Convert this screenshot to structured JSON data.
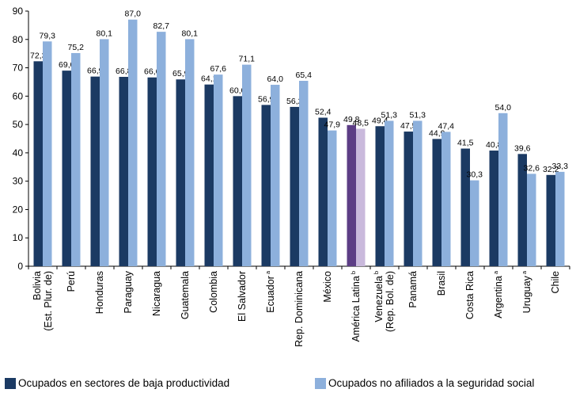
{
  "chart_data": {
    "type": "bar",
    "y_ticks": [
      "0",
      "10",
      "20",
      "30",
      "40",
      "50",
      "60",
      "70",
      "80",
      "90"
    ],
    "ylim": [
      0,
      90
    ],
    "grid": false,
    "categories": [
      {
        "lines": [
          "Bolivia",
          "(Est. Plur. de)"
        ],
        "sup": ""
      },
      {
        "lines": [
          "Perú"
        ],
        "sup": ""
      },
      {
        "lines": [
          "Honduras"
        ],
        "sup": ""
      },
      {
        "lines": [
          "Paraguay"
        ],
        "sup": ""
      },
      {
        "lines": [
          "Nicaragua"
        ],
        "sup": ""
      },
      {
        "lines": [
          "Guatemala"
        ],
        "sup": ""
      },
      {
        "lines": [
          "Colombia"
        ],
        "sup": ""
      },
      {
        "lines": [
          "El Salvador"
        ],
        "sup": ""
      },
      {
        "lines": [
          "Ecuador"
        ],
        "sup": "a"
      },
      {
        "lines": [
          "Rep. Dominicana"
        ],
        "sup": ""
      },
      {
        "lines": [
          "México"
        ],
        "sup": ""
      },
      {
        "lines": [
          "América Latina"
        ],
        "sup": "b"
      },
      {
        "lines": [
          "Venezuela",
          "(Rep. Bol. de)"
        ],
        "sup": "b"
      },
      {
        "lines": [
          "Panamá"
        ],
        "sup": ""
      },
      {
        "lines": [
          "Brasil"
        ],
        "sup": ""
      },
      {
        "lines": [
          "Costa Rica"
        ],
        "sup": ""
      },
      {
        "lines": [
          "Argentina"
        ],
        "sup": "a"
      },
      {
        "lines": [
          "Uruguay"
        ],
        "sup": "a"
      },
      {
        "lines": [
          "Chile"
        ],
        "sup": ""
      }
    ],
    "series": [
      {
        "name": "Ocupados en sectores de baja productividad",
        "color": "#1b3a63",
        "values": [
          72.3,
          69.0,
          66.9,
          66.8,
          66.6,
          65.9,
          64.1,
          60.0,
          56.9,
          56.2,
          52.4,
          49.8,
          49.4,
          47.5,
          44.9,
          41.5,
          40.8,
          39.6,
          32.2
        ],
        "labels": [
          "72,3",
          "69,0",
          "66,9",
          "66,8",
          "66,6",
          "65,9",
          "64,1",
          "60,0",
          "56,9",
          "56,2",
          "52,4",
          "49,8",
          "49,4",
          "47,5",
          "44,9",
          "41,5",
          "40,8",
          "39,6",
          "32,2"
        ]
      },
      {
        "name": "Ocupados no afiliados a la seguridad social",
        "color": "#8db0dc",
        "values": [
          79.3,
          75.2,
          80.1,
          87.0,
          82.7,
          80.1,
          67.6,
          71.1,
          64.0,
          65.4,
          47.9,
          48.5,
          51.3,
          51.3,
          47.4,
          30.3,
          54.0,
          32.6,
          33.3
        ],
        "labels": [
          "79,3",
          "75,2",
          "80,1",
          "87,0",
          "82,7",
          "80,1",
          "67,6",
          "71,1",
          "64,0",
          "65,4",
          "47,9",
          "48,5",
          "51,3",
          "51,3",
          "47,4",
          "30,3",
          "54,0",
          "32,6",
          "33,3"
        ]
      }
    ],
    "highlight": {
      "index": 11,
      "colors": [
        "#5c3d85",
        "#c9b9dc"
      ]
    },
    "legend_position": "bottom"
  }
}
